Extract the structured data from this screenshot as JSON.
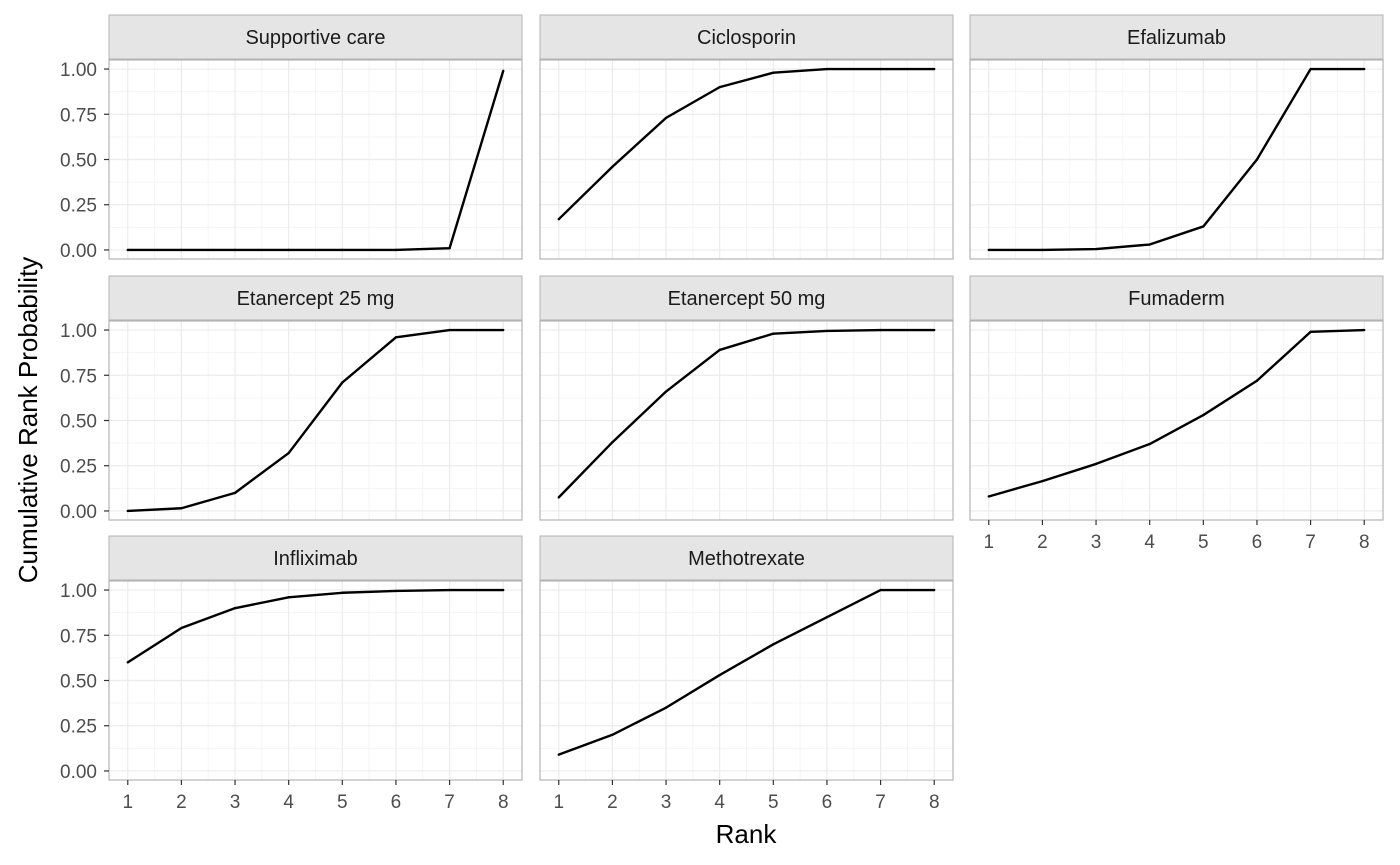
{
  "chart_data": {
    "type": "line",
    "title": "",
    "xlabel": "Rank",
    "ylabel": "Cumulative Rank Probability",
    "x": [
      1,
      2,
      3,
      4,
      5,
      6,
      7,
      8
    ],
    "xlim": [
      0.65,
      8.35
    ],
    "ylim": [
      -0.05,
      1.05
    ],
    "y_ticks": [
      0,
      0.25,
      0.5,
      0.75,
      1.0
    ],
    "y_tick_labels": [
      "0.00",
      "0.25",
      "0.50",
      "0.75",
      "1.00"
    ],
    "x_tick_labels": [
      "1",
      "2",
      "3",
      "4",
      "5",
      "6",
      "7",
      "8"
    ],
    "grid": true,
    "legend": "none",
    "line_color": "#000000",
    "facets": [
      {
        "name": "Supportive care",
        "values": [
          0.0,
          0.0,
          0.0,
          0.0,
          0.0,
          0.0,
          0.01,
          0.99
        ]
      },
      {
        "name": "Ciclosporin",
        "values": [
          0.17,
          0.46,
          0.73,
          0.9,
          0.98,
          1.0,
          1.0,
          1.0
        ]
      },
      {
        "name": "Efalizumab",
        "values": [
          0.0,
          0.0,
          0.005,
          0.03,
          0.13,
          0.5,
          1.0,
          1.0
        ]
      },
      {
        "name": "Etanercept 25 mg",
        "values": [
          0.0,
          0.015,
          0.1,
          0.32,
          0.71,
          0.96,
          1.0,
          1.0
        ]
      },
      {
        "name": "Etanercept 50 mg",
        "values": [
          0.075,
          0.38,
          0.66,
          0.89,
          0.98,
          0.995,
          1.0,
          1.0
        ]
      },
      {
        "name": "Fumaderm",
        "values": [
          0.08,
          0.165,
          0.26,
          0.37,
          0.53,
          0.72,
          0.99,
          1.0
        ]
      },
      {
        "name": "Infliximab",
        "values": [
          0.6,
          0.79,
          0.9,
          0.96,
          0.985,
          0.995,
          1.0,
          1.0
        ]
      },
      {
        "name": "Methotrexate",
        "values": [
          0.09,
          0.2,
          0.35,
          0.53,
          0.7,
          0.85,
          1.0,
          1.0
        ]
      }
    ],
    "colors": {
      "strip_fill": "#e5e5e5",
      "strip_border": "#b3b3b3",
      "panel_border": "#b3b3b3",
      "grid_major": "#ebebeb",
      "grid_minor": "#f5f5f5",
      "axis_text": "#4d4d4d",
      "strip_text": "#1a1a1a"
    }
  }
}
